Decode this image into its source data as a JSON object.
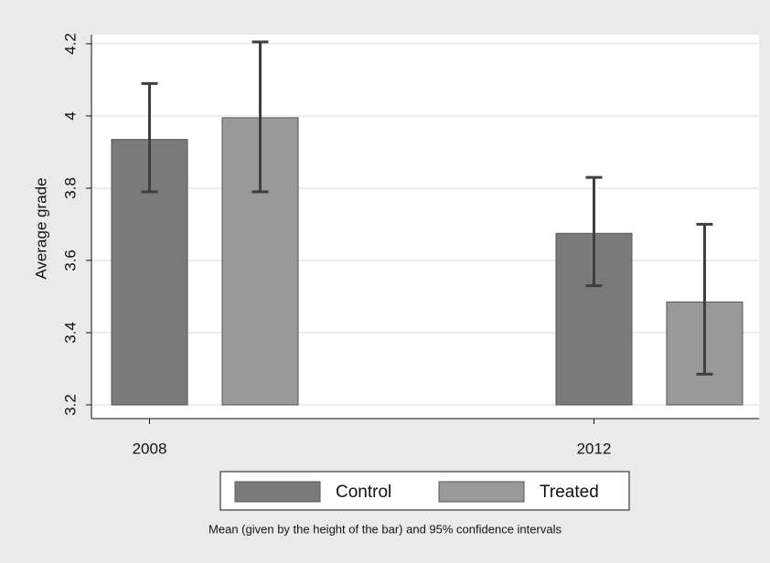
{
  "chart_data": {
    "type": "bar",
    "y_label": "Average grade",
    "note": "Mean (given by the height of the bar) and 95% confidence intervals",
    "categories": [
      "2008",
      "2012"
    ],
    "base": 3.2,
    "series": [
      {
        "name": "Control",
        "color": "#7a7a7a",
        "values": [
          3.935,
          3.675
        ],
        "ci_low": [
          3.79,
          3.53
        ],
        "ci_high": [
          4.09,
          3.83
        ]
      },
      {
        "name": "Treated",
        "color": "#999999",
        "values": [
          3.995,
          3.485
        ],
        "ci_low": [
          3.79,
          3.285
        ],
        "ci_high": [
          4.205,
          3.7
        ]
      }
    ],
    "ylim": [
      3.162,
      4.225
    ],
    "yticks": [
      {
        "value": 3.2,
        "label": "3.2"
      },
      {
        "value": 3.4,
        "label": "3.4"
      },
      {
        "value": 3.6,
        "label": "3.6"
      },
      {
        "value": 3.8,
        "label": "3.8"
      },
      4,
      {
        "value": 4.2,
        "label": "4.2"
      }
    ],
    "grid": true,
    "error_color": "#3f3f3f"
  }
}
